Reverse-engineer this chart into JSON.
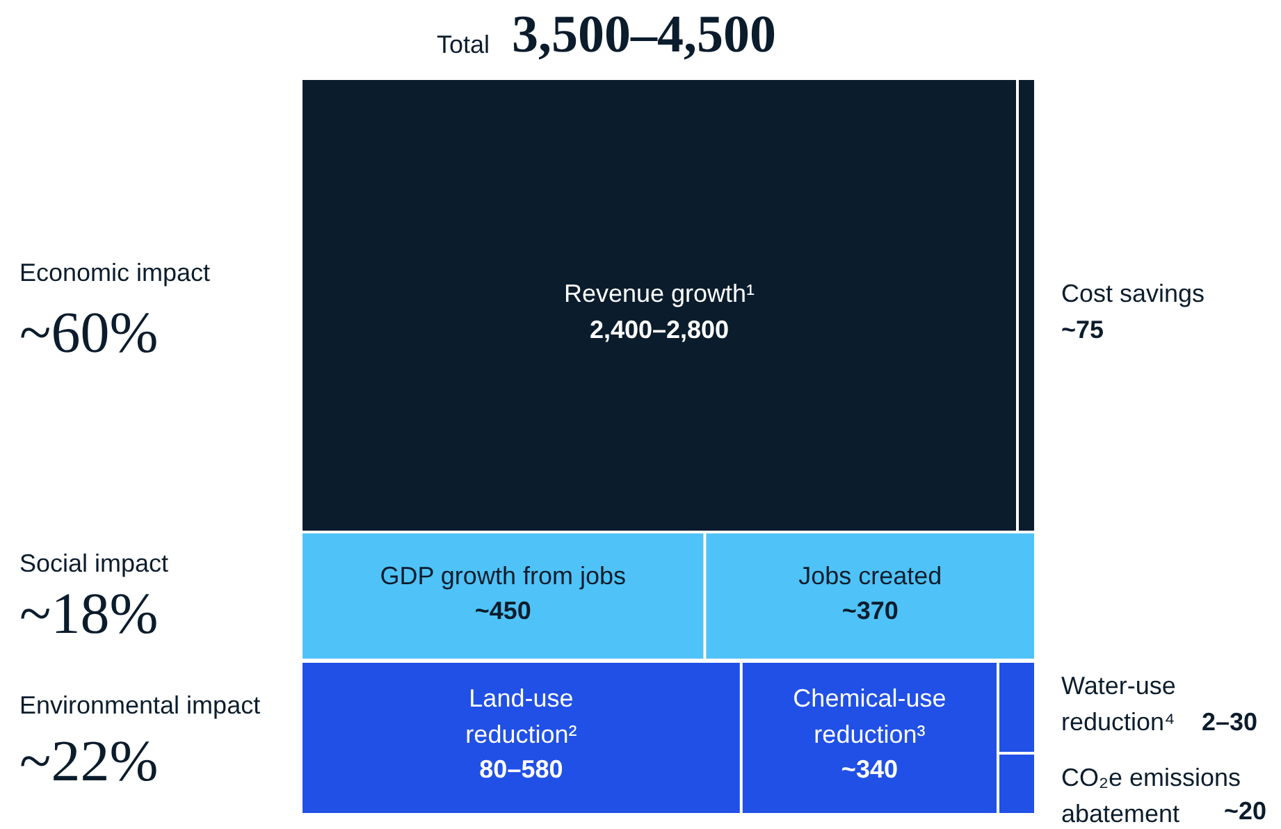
{
  "chart_data": {
    "type": "other",
    "title": "Total",
    "subtitle": "3,500–4,500",
    "categories": [
      "Revenue growth¹",
      "Cost savings",
      "GDP growth from jobs",
      "Jobs created",
      "Land-use reduction²",
      "Chemical-use reduction³",
      "Water-use reduction⁴",
      "CO₂e emissions abatement"
    ],
    "values": [
      null,
      75,
      450,
      370,
      null,
      340,
      null,
      20
    ],
    "value_labels": [
      "2,400–2,800",
      "~75",
      "~450",
      "~370",
      "80–580",
      "~340",
      "2–30",
      "~20"
    ],
    "colors": [
      "#0b1c2c",
      "#0b1c2c",
      "#4fc3f7",
      "#4fc3f7",
      "#2150e6",
      "#2150e6",
      "#2150e6",
      "#2150e6"
    ],
    "annotations": [
      "Economic impact",
      "~60%",
      "Social impact",
      "~18%",
      "Environmental impact",
      "~22%"
    ]
  }
}
